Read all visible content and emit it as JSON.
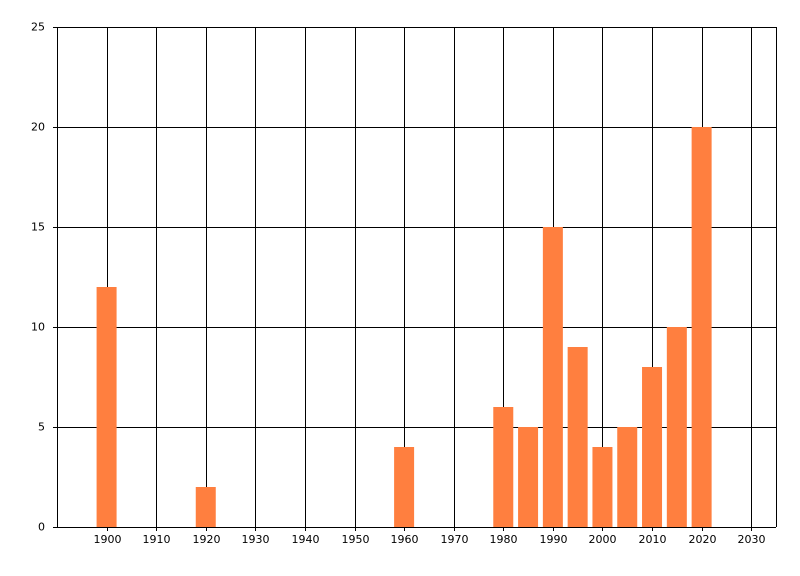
{
  "chart_data": {
    "type": "bar",
    "x": [
      1900,
      1920,
      1960,
      1980,
      1985,
      1990,
      1995,
      2000,
      2005,
      2010,
      2015,
      2020
    ],
    "values": [
      12,
      2,
      4,
      6,
      5,
      15,
      9,
      4,
      5,
      8,
      10,
      20
    ],
    "color": "#ff7f3f",
    "xlim": [
      1890,
      2035
    ],
    "xticks": [
      1900,
      1910,
      1920,
      1930,
      1940,
      1950,
      1960,
      1970,
      1980,
      1990,
      2000,
      2010,
      2020,
      2030
    ],
    "ylim": [
      0,
      25
    ],
    "yticks": [
      0,
      5,
      10,
      15,
      20,
      25
    ],
    "grid": true
  }
}
